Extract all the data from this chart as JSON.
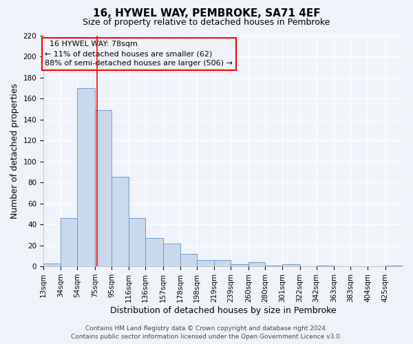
{
  "title": "16, HYWEL WAY, PEMBROKE, SA71 4EF",
  "subtitle": "Size of property relative to detached houses in Pembroke",
  "xlabel": "Distribution of detached houses by size in Pembroke",
  "ylabel": "Number of detached properties",
  "bin_labels": [
    "13sqm",
    "34sqm",
    "54sqm",
    "75sqm",
    "95sqm",
    "116sqm",
    "136sqm",
    "157sqm",
    "178sqm",
    "198sqm",
    "219sqm",
    "239sqm",
    "260sqm",
    "280sqm",
    "301sqm",
    "322sqm",
    "342sqm",
    "363sqm",
    "383sqm",
    "404sqm",
    "425sqm"
  ],
  "bar_values": [
    3,
    46,
    170,
    149,
    85,
    46,
    27,
    22,
    12,
    6,
    6,
    2,
    4,
    1,
    2,
    0,
    1,
    0,
    0,
    0,
    1
  ],
  "bin_edges": [
    13,
    34,
    54,
    75,
    95,
    116,
    136,
    157,
    178,
    198,
    219,
    239,
    260,
    280,
    301,
    322,
    342,
    363,
    383,
    404,
    425
  ],
  "bar_color": "#c9d9ed",
  "bar_edge_color": "#5b8dc8",
  "red_line_x": 78,
  "ylim": [
    0,
    220
  ],
  "yticks": [
    0,
    20,
    40,
    60,
    80,
    100,
    120,
    140,
    160,
    180,
    200,
    220
  ],
  "annotation_title": "16 HYWEL WAY: 78sqm",
  "annotation_line1": "← 11% of detached houses are smaller (62)",
  "annotation_line2": "88% of semi-detached houses are larger (506) →",
  "footer1": "Contains HM Land Registry data © Crown copyright and database right 2024.",
  "footer2": "Contains public sector information licensed under the Open Government Licence v3.0.",
  "background_color": "#f0f4fa",
  "grid_color": "#ffffff",
  "title_fontsize": 11,
  "subtitle_fontsize": 9,
  "axis_label_fontsize": 9,
  "tick_fontsize": 7.5,
  "annotation_fontsize": 8,
  "footer_fontsize": 6.5
}
